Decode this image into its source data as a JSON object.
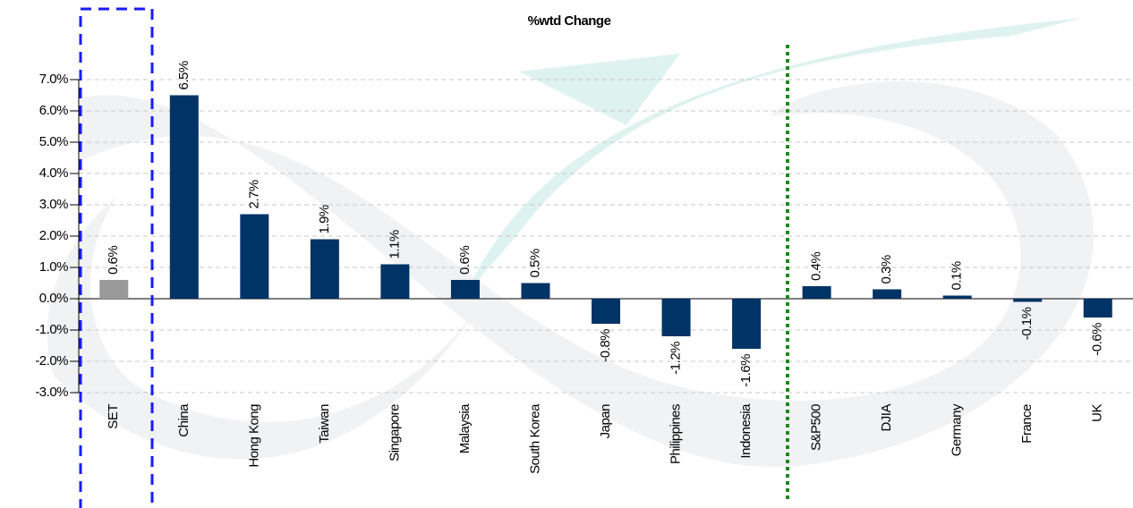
{
  "chart_data": {
    "type": "bar",
    "title": "%wtd Change",
    "categories": [
      "SET",
      "China",
      "Hong Kong",
      "Taiwan",
      "Singapore",
      "Malaysia",
      "South Korea",
      "Japan",
      "Philippines",
      "Indonesia",
      "S&P500",
      "DJIA",
      "Germany",
      "France",
      "UK"
    ],
    "values": [
      0.6,
      6.5,
      2.7,
      1.9,
      1.1,
      0.6,
      0.5,
      -0.8,
      -1.2,
      -1.6,
      0.4,
      0.3,
      0.1,
      -0.1,
      -0.6
    ],
    "value_labels": [
      "0.6%",
      "6.5%",
      "2.7%",
      "1.9%",
      "1.1%",
      "0.6%",
      "0.5%",
      "-0.8%",
      "-1.2%",
      "-1.6%",
      "0.4%",
      "0.3%",
      "0.1%",
      "-0.1%",
      "-0.6%"
    ],
    "colors": [
      "#999999",
      "#003366",
      "#003366",
      "#003366",
      "#003366",
      "#003366",
      "#003366",
      "#003366",
      "#003366",
      "#003366",
      "#003366",
      "#003366",
      "#003366",
      "#003366",
      "#003366"
    ],
    "ylim": [
      -3,
      7
    ],
    "yticks": [
      {
        "value": -3,
        "label": "-3.0%"
      },
      {
        "value": -2,
        "label": "-2.0%"
      },
      {
        "value": -1,
        "label": "-1.0%"
      },
      {
        "value": 0,
        "label": "0.0%"
      },
      {
        "value": 1,
        "label": "1.0%"
      },
      {
        "value": 2,
        "label": "2.0%"
      },
      {
        "value": 3,
        "label": "3.0%"
      },
      {
        "value": 4,
        "label": "4.0%"
      },
      {
        "value": 5,
        "label": "5.0%"
      },
      {
        "value": 6,
        "label": "6.0%"
      },
      {
        "value": 7,
        "label": "7.0%"
      }
    ],
    "grid": true
  }
}
